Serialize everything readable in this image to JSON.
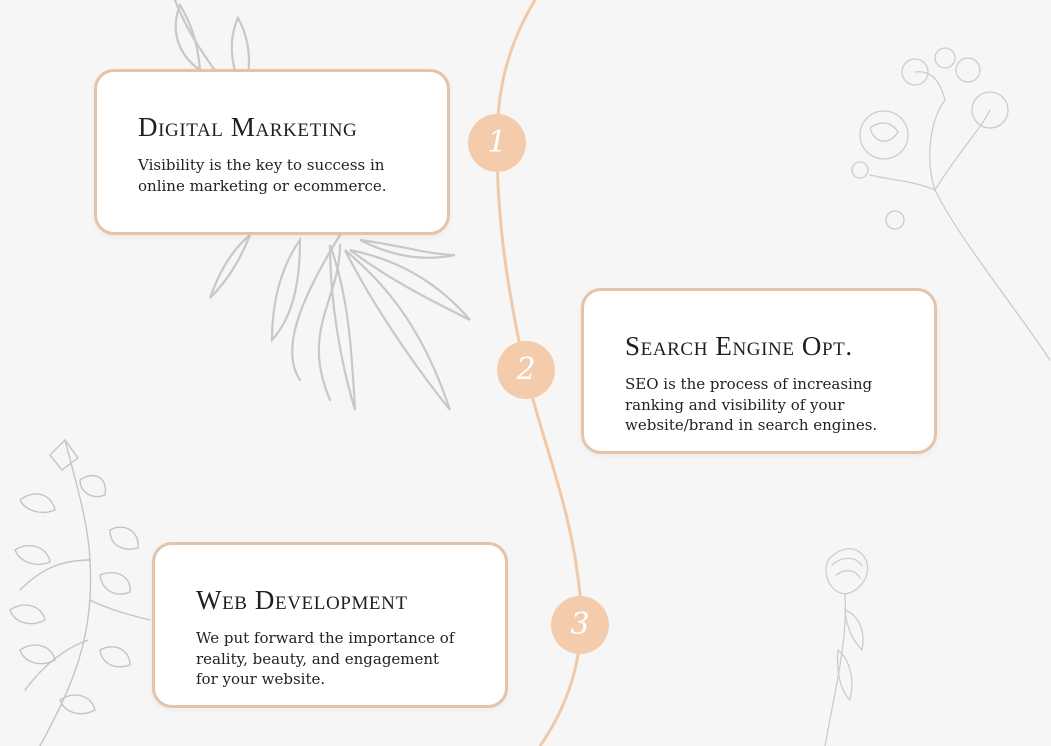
{
  "colors": {
    "background": "#f6f6f6",
    "card_border": "#e3c4aa",
    "timeline": "#f2c9a6",
    "badge": "#f4ccab",
    "sketch": "#c9c9c9"
  },
  "decorations": [
    "leaf-sketch-icon",
    "rose-sketch-icon",
    "branch-sketch-icon",
    "carnation-sketch-icon"
  ],
  "steps": [
    {
      "number": "1",
      "title": "Digital Marketing",
      "text": "Visibility is the key to success in online marketing or ecommerce."
    },
    {
      "number": "2",
      "title": "Search Engine Opt.",
      "text": "SEO is the process of increasing ranking and visibility of your website/brand in search engines."
    },
    {
      "number": "3",
      "title": "Web Development",
      "text": "We put forward the importance of reality, beauty, and engagement for your website."
    }
  ]
}
